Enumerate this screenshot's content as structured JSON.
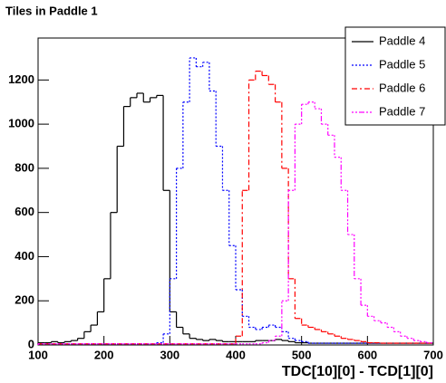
{
  "chart_data": {
    "type": "step-histogram",
    "title": "Tiles in Paddle 1",
    "x_label": "TDC[10][0] - TCD[1][0]",
    "bins": [
      100,
      110,
      120,
      130,
      140,
      150,
      160,
      170,
      180,
      190,
      200,
      210,
      220,
      230,
      240,
      250,
      260,
      270,
      280,
      290,
      300,
      310,
      320,
      330,
      340,
      350,
      360,
      370,
      380,
      390,
      400,
      410,
      420,
      430,
      440,
      450,
      460,
      470,
      480,
      490,
      500,
      510,
      520,
      530,
      540,
      550,
      560,
      570,
      580,
      590,
      600,
      610,
      620,
      630,
      640,
      650,
      660,
      670,
      680,
      690,
      700
    ],
    "xlim": [
      100,
      700
    ],
    "xticks": [
      100,
      200,
      300,
      400,
      500,
      600,
      700
    ],
    "ylim": [
      0,
      1390
    ],
    "yticks": [
      0,
      200,
      400,
      600,
      800,
      1000,
      1200
    ],
    "legend": "top-right",
    "series": [
      {
        "name": "Paddle 4",
        "color": "#000000",
        "values": [
          10,
          10,
          15,
          10,
          15,
          20,
          30,
          60,
          90,
          150,
          300,
          600,
          900,
          1080,
          1120,
          1140,
          1100,
          1120,
          1130,
          700,
          150,
          80,
          50,
          30,
          25,
          20,
          25,
          20,
          15,
          15,
          15,
          15,
          15,
          20,
          20,
          20,
          25,
          20,
          15,
          10,
          10,
          8,
          8,
          8,
          8,
          8,
          8,
          8,
          8,
          8,
          8,
          8,
          8,
          8,
          8,
          8,
          8,
          8,
          8,
          8
        ]
      },
      {
        "name": "Paddle 5",
        "color": "#0000ff",
        "values": [
          5,
          5,
          5,
          5,
          5,
          5,
          5,
          5,
          5,
          5,
          5,
          5,
          5,
          5,
          5,
          5,
          5,
          5,
          10,
          50,
          300,
          800,
          1100,
          1300,
          1260,
          1280,
          1150,
          900,
          700,
          450,
          250,
          130,
          80,
          70,
          80,
          90,
          80,
          60,
          30,
          20,
          15,
          8,
          8,
          8,
          8,
          8,
          8,
          8,
          8,
          8,
          8,
          8,
          8,
          8,
          8,
          8,
          8,
          8,
          8,
          8
        ]
      },
      {
        "name": "Paddle 6",
        "color": "#ff0000",
        "values": [
          5,
          5,
          5,
          5,
          5,
          5,
          5,
          5,
          5,
          5,
          5,
          5,
          5,
          5,
          5,
          5,
          5,
          5,
          5,
          5,
          5,
          5,
          5,
          5,
          5,
          5,
          5,
          5,
          5,
          5,
          40,
          700,
          1200,
          1240,
          1220,
          1180,
          1100,
          800,
          300,
          120,
          90,
          80,
          70,
          60,
          50,
          40,
          30,
          25,
          20,
          15,
          10,
          10,
          8,
          8,
          8,
          8,
          8,
          8,
          8,
          8
        ]
      },
      {
        "name": "Paddle 7",
        "color": "#ff00ff",
        "values": [
          5,
          5,
          5,
          5,
          5,
          5,
          5,
          5,
          5,
          5,
          5,
          5,
          5,
          5,
          5,
          5,
          5,
          5,
          5,
          5,
          5,
          5,
          5,
          5,
          5,
          5,
          5,
          5,
          5,
          5,
          5,
          5,
          5,
          5,
          10,
          20,
          40,
          200,
          700,
          1000,
          1090,
          1100,
          1070,
          1000,
          950,
          850,
          700,
          500,
          300,
          180,
          130,
          110,
          100,
          80,
          60,
          40,
          30,
          20,
          15,
          10
        ]
      }
    ]
  }
}
